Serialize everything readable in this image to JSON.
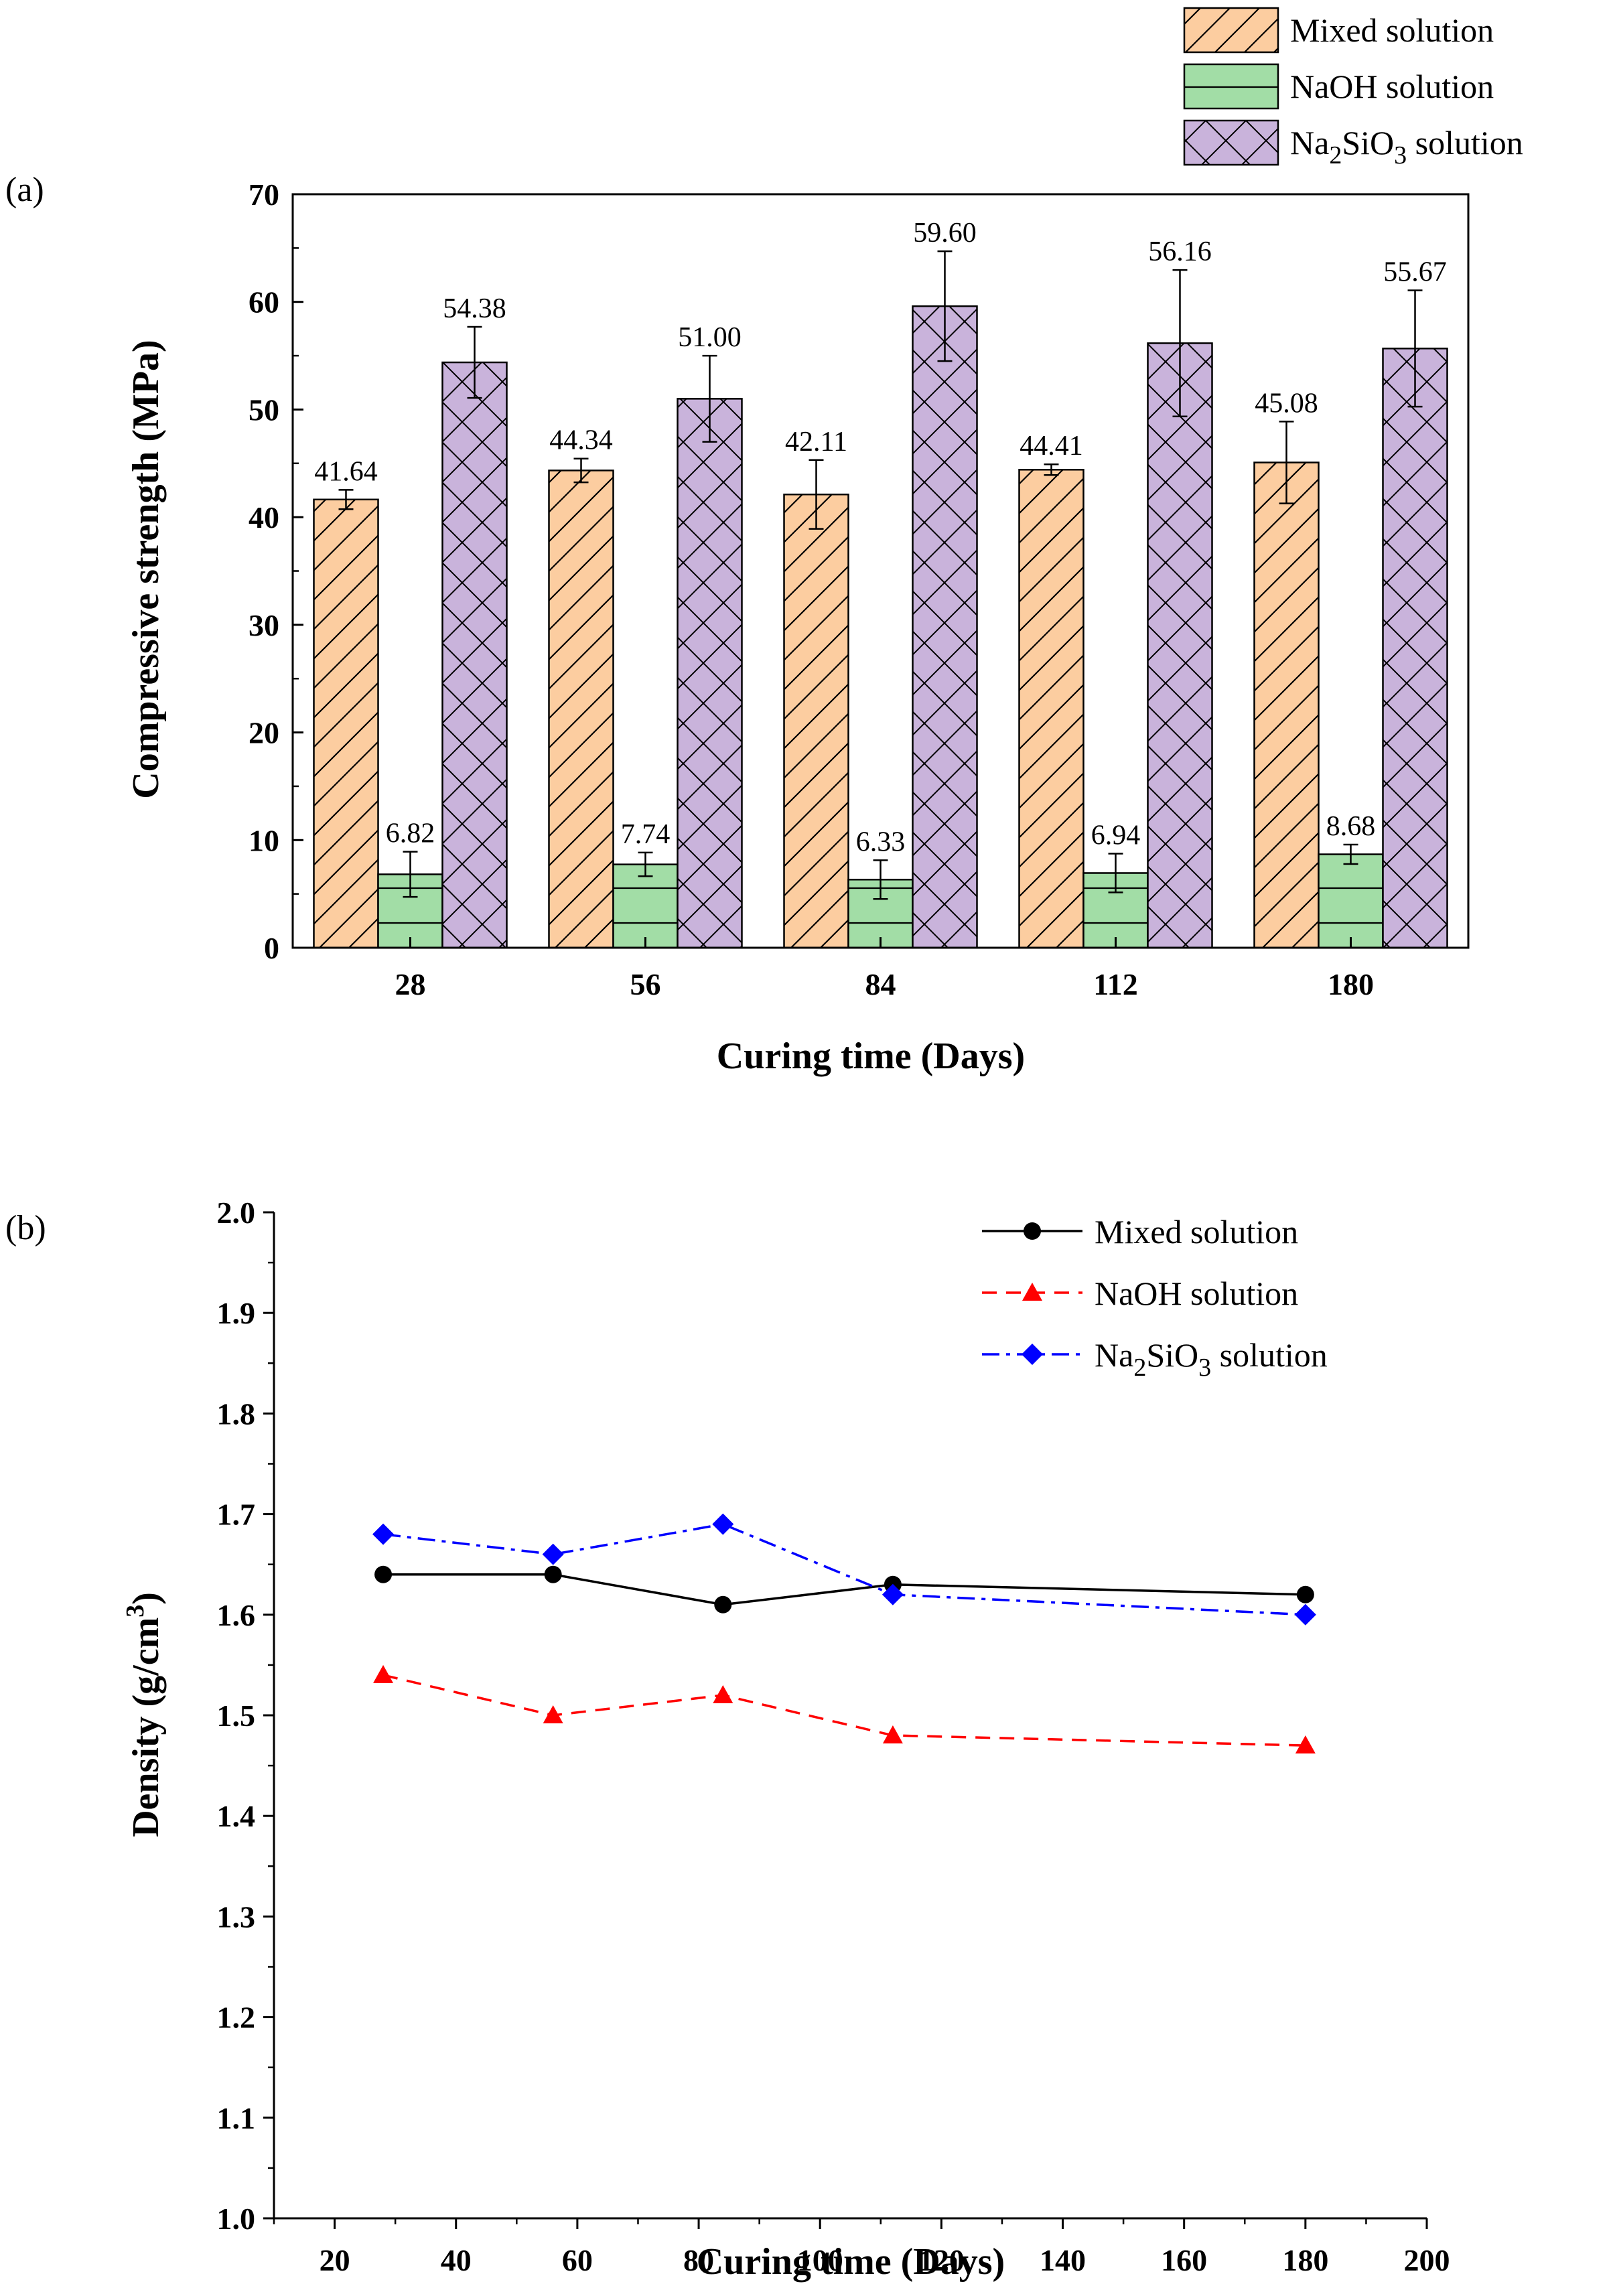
{
  "chart_data": [
    {
      "panel_label": "(a)",
      "type": "bar",
      "xlabel": "Curing time (Days)",
      "ylabel": "Compressive strength (MPa)",
      "ylim": [
        0,
        70
      ],
      "yticks": [
        0,
        10,
        20,
        30,
        40,
        50,
        60,
        70
      ],
      "categories": [
        "28",
        "56",
        "84",
        "112",
        "180"
      ],
      "legend_position": "top-right",
      "series": [
        {
          "name": "Mixed solution",
          "legend": {
            "base": "Mixed solution"
          },
          "fill": "#FCCDA0",
          "hatch": "diagonal",
          "values": [
            41.64,
            44.34,
            42.11,
            44.41,
            45.08
          ],
          "labels": [
            "41.64",
            "44.34",
            "42.11",
            "44.41",
            "45.08"
          ],
          "errors": [
            0.9,
            1.1,
            3.2,
            0.5,
            3.8
          ]
        },
        {
          "name": "NaOH solution",
          "legend": {
            "base": "NaOH solution"
          },
          "fill": "#A2DDA6",
          "hatch": "horizontal",
          "values": [
            6.82,
            7.74,
            6.33,
            6.94,
            8.68
          ],
          "labels": [
            "6.82",
            "7.74",
            "6.33",
            "6.94",
            "8.68"
          ],
          "errors": [
            2.1,
            1.1,
            1.8,
            1.8,
            0.9
          ]
        },
        {
          "name": "Na2SiO3 solution",
          "legend": {
            "pre": "Na",
            "sub1": "2",
            "mid": "SiO",
            "sub2": "3",
            "post": " solution"
          },
          "fill": "#C9B3DB",
          "hatch": "cross",
          "values": [
            54.38,
            51.0,
            59.6,
            56.16,
            55.67
          ],
          "labels": [
            "54.38",
            "51.00",
            "59.60",
            "56.16",
            "55.67"
          ],
          "errors": [
            3.3,
            4.0,
            5.1,
            6.8,
            5.4
          ]
        }
      ]
    },
    {
      "panel_label": "(b)",
      "type": "line",
      "xlabel": "Curing time (Days)",
      "ylabel": {
        "main": "Density (g/cm",
        "sup": "3",
        "close": ")"
      },
      "xlim": [
        10,
        200
      ],
      "ylim": [
        1.0,
        2.0
      ],
      "xticks": [
        20,
        40,
        60,
        80,
        100,
        120,
        140,
        160,
        180,
        200
      ],
      "yticks": [
        "1.0",
        "1.1",
        "1.2",
        "1.3",
        "1.4",
        "1.5",
        "1.6",
        "1.7",
        "1.8",
        "1.9",
        "2.0"
      ],
      "x": [
        28,
        56,
        84,
        112,
        180
      ],
      "legend_position": "top-right",
      "series": [
        {
          "name": "Mixed solution",
          "legend": {
            "base": "Mixed solution"
          },
          "color": "#000000",
          "marker": "circle",
          "dash": "solid",
          "values": [
            1.64,
            1.64,
            1.61,
            1.63,
            1.62
          ]
        },
        {
          "name": "NaOH solution",
          "legend": {
            "base": "NaOH solution"
          },
          "color": "#FF0000",
          "marker": "triangle",
          "dash": "dash",
          "values": [
            1.54,
            1.5,
            1.52,
            1.48,
            1.47
          ]
        },
        {
          "name": "Na2SiO3 solution",
          "legend": {
            "pre": "Na",
            "sub1": "2",
            "mid": "SiO",
            "sub2": "3",
            "post": " solution"
          },
          "color": "#0000FF",
          "marker": "diamond",
          "dash": "dashdot",
          "values": [
            1.68,
            1.66,
            1.69,
            1.62,
            1.6
          ]
        }
      ]
    }
  ]
}
